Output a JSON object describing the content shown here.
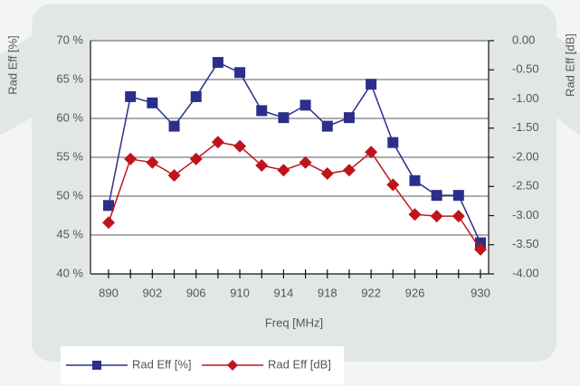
{
  "chart_data": {
    "type": "line",
    "x_label": "Freq [MHz]",
    "y_label": "Rad Eff [%]",
    "y2_label": "Rad Eff [dB]",
    "categories": [
      "890",
      null,
      "902",
      null,
      "906",
      null,
      "910",
      null,
      "914",
      null,
      "918",
      null,
      "922",
      null,
      "926",
      null,
      null,
      "930"
    ],
    "ylim": [
      40,
      70
    ],
    "yticks": [
      {
        "value": 40,
        "label": "40 %"
      },
      {
        "value": 45,
        "label": "45 %"
      },
      {
        "value": 50,
        "label": "50 %"
      },
      {
        "value": 55,
        "label": "55 %"
      },
      {
        "value": 60,
        "label": "60 %"
      },
      {
        "value": 65,
        "label": "65 %"
      },
      {
        "value": 70,
        "label": "70 %"
      }
    ],
    "y2lim": [
      -4,
      0
    ],
    "y2ticks": [
      {
        "value": -4,
        "label": "-4.00"
      },
      {
        "value": -3.5,
        "label": "-3.50"
      },
      {
        "value": -3,
        "label": "-3.00"
      },
      {
        "value": -2.5,
        "label": "-2.50"
      },
      {
        "value": -2,
        "label": "-2.00"
      },
      {
        "value": -1.5,
        "label": "-1.50"
      },
      {
        "value": -1,
        "label": "-1.00"
      },
      {
        "value": -0.5,
        "label": "-0.50"
      },
      {
        "value": 0,
        "label": "0.00"
      }
    ],
    "grid": true,
    "series": [
      {
        "name": "Rad Eff [%]",
        "color": "#2b2f8a",
        "marker": "square",
        "values": [
          48.8,
          62.8,
          62.0,
          59.0,
          62.8,
          67.2,
          65.9,
          61.0,
          60.1,
          61.7,
          59.0,
          60.1,
          64.4,
          56.9,
          52.0,
          50.1,
          50.1,
          44.0
        ]
      },
      {
        "name": "Rad Eff [dB]",
        "color": "#c0141c",
        "marker": "diamond",
        "axis": "y2",
        "values": [
          -3.12,
          -2.03,
          -2.09,
          -2.31,
          -2.03,
          -1.74,
          -1.81,
          -2.14,
          -2.22,
          -2.09,
          -2.28,
          -2.22,
          -1.91,
          -2.47,
          -2.98,
          -3.01,
          -3.01,
          -3.58
        ]
      }
    ]
  }
}
